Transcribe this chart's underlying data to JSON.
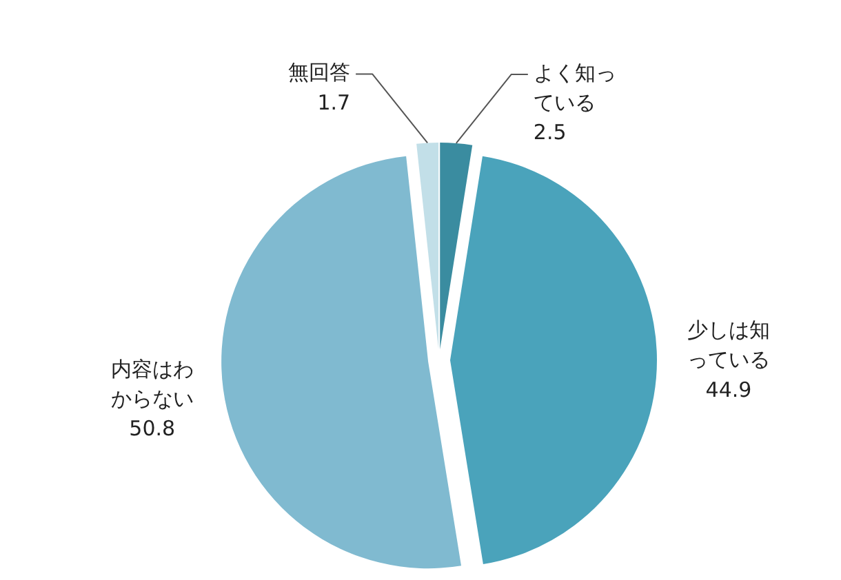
{
  "chart_data": {
    "type": "pie",
    "categories": [
      "よく知っている",
      "少しは知っている",
      "内容はわからない",
      "無回答"
    ],
    "values": [
      2.5,
      44.9,
      50.8,
      1.7
    ],
    "colors": [
      "#3a8ca0",
      "#4aa3bb",
      "#80bad0",
      "#c2dfe8"
    ],
    "data_labels": true
  }
}
